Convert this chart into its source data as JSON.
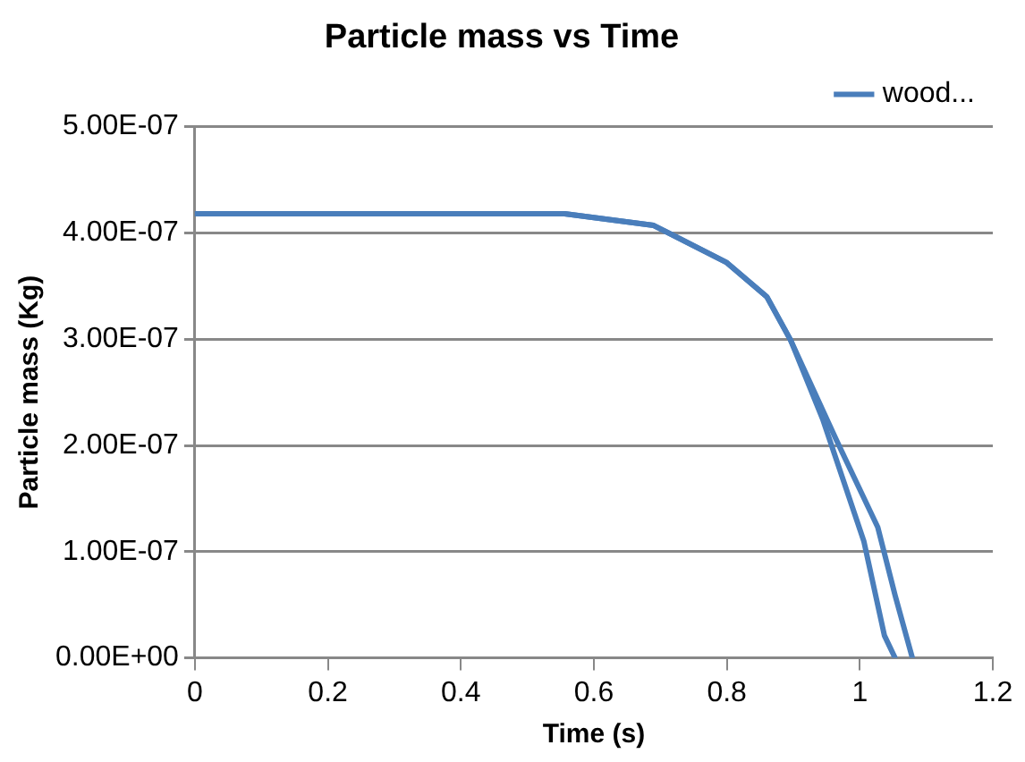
{
  "chart_data": {
    "type": "line",
    "title": "Particle mass vs Time",
    "xlabel": "Time (s)",
    "ylabel": "Particle mass (Kg)",
    "xlim": [
      0,
      1.2
    ],
    "xticks": [
      0,
      0.2,
      0.4,
      0.6,
      0.8,
      1,
      1.2
    ],
    "ylim": [
      0,
      5e-07
    ],
    "yticks": [
      {
        "value": 0,
        "label": "0.00E+00"
      },
      {
        "value": 1e-07,
        "label": "1.00E-07"
      },
      {
        "value": 2e-07,
        "label": "2.00E-07"
      },
      {
        "value": 3e-07,
        "label": "3.00E-07"
      },
      {
        "value": 4e-07,
        "label": "4.00E-07"
      },
      {
        "value": 5e-07,
        "label": "5.00E-07"
      }
    ],
    "grid": "y",
    "legend": "top right",
    "marker": "none",
    "line_style": "solid",
    "series": [
      {
        "name": "wood...",
        "color": "#4a7ebb",
        "x": [
          0,
          0.2,
          0.4,
          0.556,
          0.69,
          0.8,
          0.86,
          0.896,
          0.944,
          1.006,
          1.037,
          1.053
        ],
        "values": [
          4.18e-07,
          4.18e-07,
          4.18e-07,
          4.18e-07,
          4.07e-07,
          3.72e-07,
          3.4e-07,
          2.99e-07,
          2.25e-07,
          1.1e-07,
          2.1e-08,
          0
        ]
      },
      {
        "color": "#4a7ebb",
        "x": [
          0,
          0.2,
          0.4,
          0.556,
          0.69,
          0.8,
          0.86,
          0.896,
          0.964,
          1.027,
          1.053,
          1.079
        ],
        "values": [
          4.18e-07,
          4.18e-07,
          4.18e-07,
          4.18e-07,
          4.07e-07,
          3.72e-07,
          3.4e-07,
          2.99e-07,
          2.06e-07,
          1.23e-07,
          5.9e-08,
          0
        ]
      }
    ]
  }
}
